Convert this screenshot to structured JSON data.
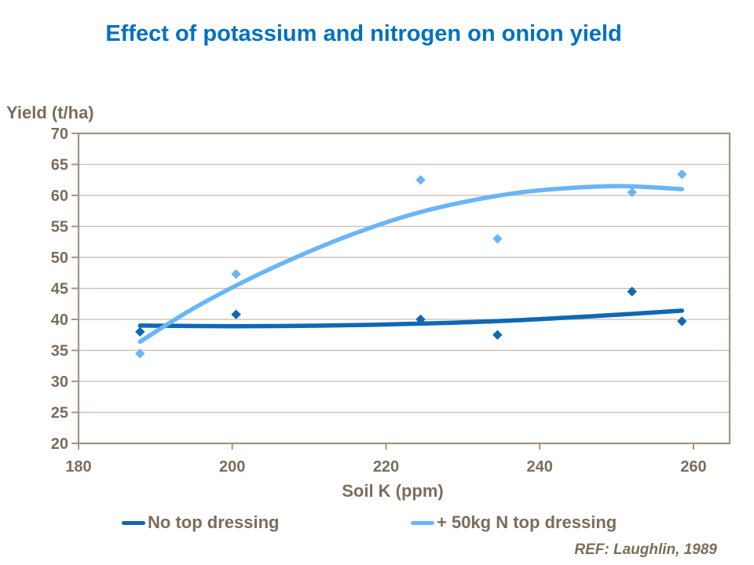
{
  "title": {
    "text": "Effect of potassium and nitrogen on onion yield",
    "color": "#0070c0"
  },
  "footer": {
    "ref_text": "REF: Laughlin, 1989"
  },
  "chart_data": {
    "type": "scatter",
    "title": "Effect of potassium and nitrogen on onion yield",
    "xlabel": "Soil K (ppm)",
    "ylabel": "Yield (t/ha)",
    "xlim": [
      180,
      264.7
    ],
    "ylim": [
      20,
      70
    ],
    "xticks": [
      180,
      200,
      220,
      240,
      260
    ],
    "yticks": [
      20,
      25,
      30,
      35,
      40,
      45,
      50,
      55,
      60,
      65,
      70
    ],
    "grid": "horizontal",
    "legend_position": "bottom",
    "axis_color": "#a59480",
    "grid_color": "#cabdab",
    "text_color": "#7b6d5a",
    "series": [
      {
        "name": "No top dressing",
        "color": "#0f68b2",
        "marker": "diamond",
        "points": [
          [
            188,
            38.0
          ],
          [
            200.5,
            40.8
          ],
          [
            224.5,
            40.0
          ],
          [
            234.5,
            37.5
          ],
          [
            252,
            44.5
          ],
          [
            258.5,
            39.7
          ]
        ],
        "trend": [
          [
            188,
            39.0
          ],
          [
            200,
            38.9
          ],
          [
            212,
            39.0
          ],
          [
            224,
            39.3
          ],
          [
            236,
            39.8
          ],
          [
            248,
            40.6
          ],
          [
            258.5,
            41.4
          ]
        ]
      },
      {
        "name": "+ 50kg N top dressing",
        "color": "#6ab5f5",
        "marker": "diamond",
        "points": [
          [
            188,
            34.5
          ],
          [
            200.5,
            47.3
          ],
          [
            224.5,
            62.5
          ],
          [
            234.5,
            53.0
          ],
          [
            252,
            60.5
          ],
          [
            258.5,
            63.4
          ]
        ],
        "trend": [
          [
            188,
            36.4
          ],
          [
            195,
            41.8
          ],
          [
            202,
            46.4
          ],
          [
            209,
            50.4
          ],
          [
            216,
            53.9
          ],
          [
            223,
            56.8
          ],
          [
            230,
            58.9
          ],
          [
            237,
            60.4
          ],
          [
            244,
            61.2
          ],
          [
            251,
            61.5
          ],
          [
            258.5,
            61.0
          ]
        ]
      }
    ]
  }
}
